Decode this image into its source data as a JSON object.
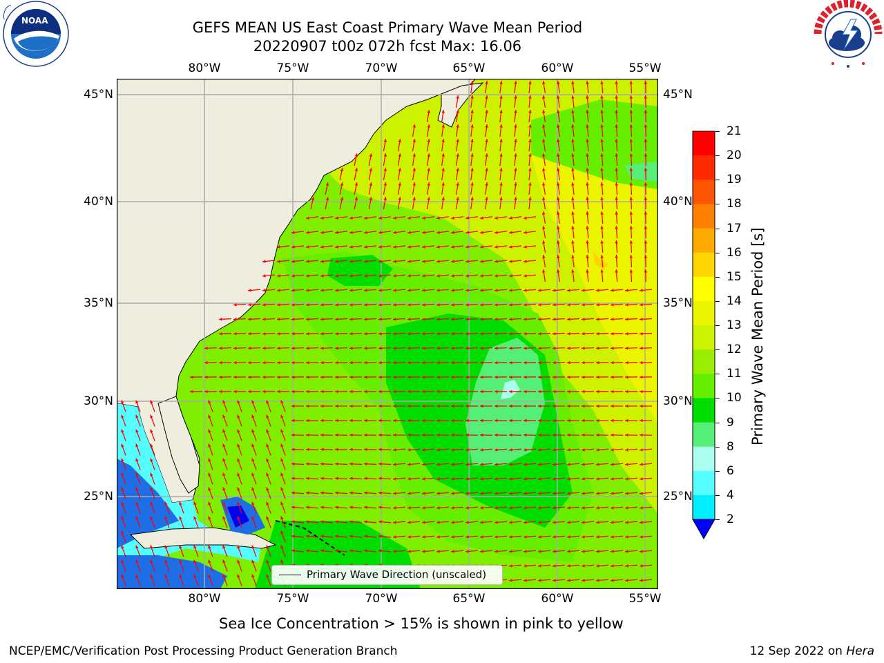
{
  "title": {
    "line1": "GEFS MEAN US East Coast Primary Wave Mean Period",
    "line2": "20220907 t00z 072h fcst   Max: 16.06"
  },
  "logos": {
    "left": {
      "name": "noaa-logo",
      "text": "NOAA",
      "ring_text": "NATIONAL OCEANIC AND ATMOSPHERIC ADMINISTRATION · U.S. DEPARTMENT OF COMMERCE"
    },
    "right": {
      "name": "nws-logo",
      "ring_text": "NATIONAL WEATHER SERVICE"
    }
  },
  "map": {
    "lon_ticks": [
      "80°W",
      "75°W",
      "70°W",
      "65°W",
      "60°W",
      "55°W"
    ],
    "lat_ticks_left": [
      "45°N",
      "40°N",
      "35°N",
      "30°N",
      "25°N"
    ],
    "lat_ticks_right": [
      "45°N",
      "40°N",
      "35°N",
      "30°N",
      "25°N"
    ],
    "colors": {
      "land": "#efedde",
      "grid": "#aaaaaa",
      "arrow": "#ff0000",
      "coast": "#000000"
    },
    "legend": {
      "label": "Primary Wave Direction (unscaled)"
    }
  },
  "colorbar": {
    "title": "Primary Wave Mean Period [s]",
    "labels": [
      "21",
      "20",
      "19",
      "18",
      "17",
      "16",
      "15",
      "14",
      "13",
      "12",
      "11",
      "10",
      "9",
      "8",
      "6",
      "4",
      "2"
    ],
    "colors_top_to_bottom": [
      "#ff0000",
      "#ff2a00",
      "#ff5500",
      "#ff8000",
      "#ffaa00",
      "#ffd400",
      "#ffff00",
      "#ebf500",
      "#ccf200",
      "#99ee00",
      "#66ee00",
      "#00dd00",
      "#55ee77",
      "#aaffee",
      "#55ffff",
      "#00eeff",
      "#00aaff"
    ],
    "under_color": "#0000ff"
  },
  "note": "Sea Ice Concentration > 15% is shown in pink to yellow",
  "footer": {
    "left": "NCEP/EMC/Verification Post Processing Product Generation Branch",
    "right_date": "12 Sep 2022 on ",
    "right_host": "Hera"
  }
}
